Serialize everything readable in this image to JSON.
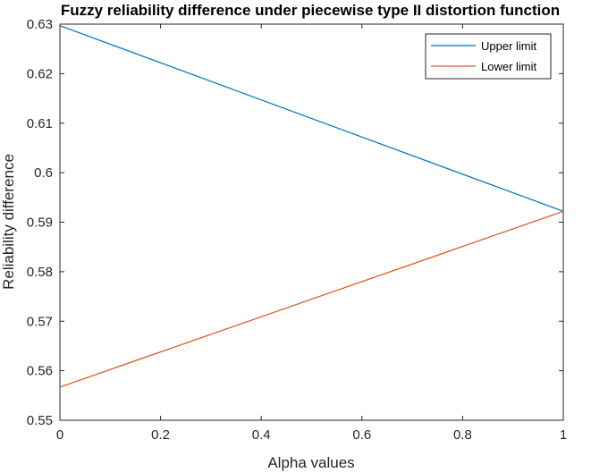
{
  "chart_data": {
    "type": "line",
    "title": "Fuzzy reliability difference under piecewise type II distortion function",
    "xlabel": "Alpha values",
    "ylabel": "Reliability difference",
    "xlim": [
      0,
      1
    ],
    "ylim": [
      0.55,
      0.63
    ],
    "xticks": [
      0,
      0.2,
      0.4,
      0.6,
      0.8,
      1
    ],
    "xtick_labels": [
      "0",
      "0.2",
      "0.4",
      "0.6",
      "0.8",
      "1"
    ],
    "yticks": [
      0.55,
      0.56,
      0.57,
      0.58,
      0.59,
      0.6,
      0.61,
      0.62,
      0.63
    ],
    "ytick_labels": [
      "0.55",
      "0.56",
      "0.57",
      "0.58",
      "0.59",
      "0.6",
      "0.61",
      "0.62",
      "0.63"
    ],
    "grid": false,
    "legend_position": "top-right",
    "series": [
      {
        "name": "Upper limit",
        "color": "#0072BD",
        "x": [
          0,
          1
        ],
        "y": [
          0.6297,
          0.5922
        ]
      },
      {
        "name": "Lower limit",
        "color": "#D95319",
        "x": [
          0,
          1
        ],
        "y": [
          0.5567,
          0.5922
        ]
      }
    ]
  }
}
